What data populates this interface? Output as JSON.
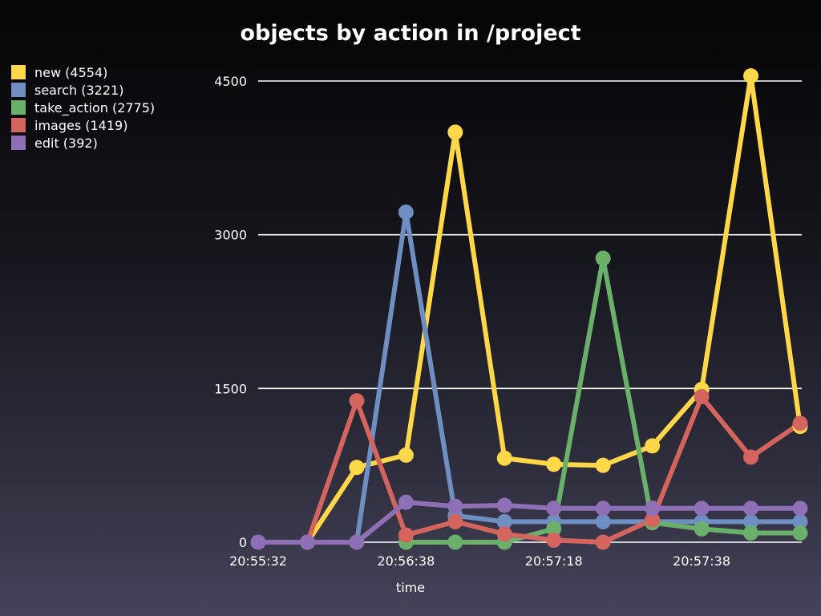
{
  "chart_data": {
    "type": "line",
    "title": "objects by action in /project",
    "xlabel": "time",
    "ylabel": "",
    "ylim": [
      0,
      4500
    ],
    "yticks": [
      0,
      1500,
      3000,
      4500
    ],
    "grid": "horizontal",
    "legend_position": "top-left",
    "x": [
      "20:55:32",
      "",
      "",
      "20:56:38",
      "",
      "",
      "20:57:18",
      "",
      "",
      "20:57:38",
      "",
      ""
    ],
    "xtick_labels": [
      {
        "index": 0,
        "label": "20:55:32"
      },
      {
        "index": 3,
        "label": "20:56:38"
      },
      {
        "index": 6,
        "label": "20:57:18"
      },
      {
        "index": 9,
        "label": "20:57:38"
      }
    ],
    "series": [
      {
        "name": "new (4554)",
        "color": "#ffd84a",
        "values": [
          null,
          0,
          730,
          850,
          4000,
          820,
          760,
          750,
          940,
          1490,
          4550,
          1130
        ]
      },
      {
        "name": "search (3221)",
        "color": "#6f8fc2",
        "values": [
          null,
          null,
          0,
          3220,
          260,
          200,
          200,
          200,
          200,
          200,
          200,
          200
        ]
      },
      {
        "name": "take_action (2775)",
        "color": "#6aaf6a",
        "values": [
          null,
          null,
          null,
          0,
          0,
          0,
          130,
          2770,
          190,
          130,
          90,
          90
        ]
      },
      {
        "name": "images (1419)",
        "color": "#d4645e",
        "values": [
          null,
          0,
          1380,
          70,
          200,
          80,
          20,
          0,
          220,
          1420,
          830,
          1160
        ]
      },
      {
        "name": "edit (392)",
        "color": "#8f6fb6",
        "values": [
          0,
          0,
          0,
          390,
          350,
          360,
          330,
          330,
          330,
          330,
          330,
          330
        ]
      }
    ]
  }
}
